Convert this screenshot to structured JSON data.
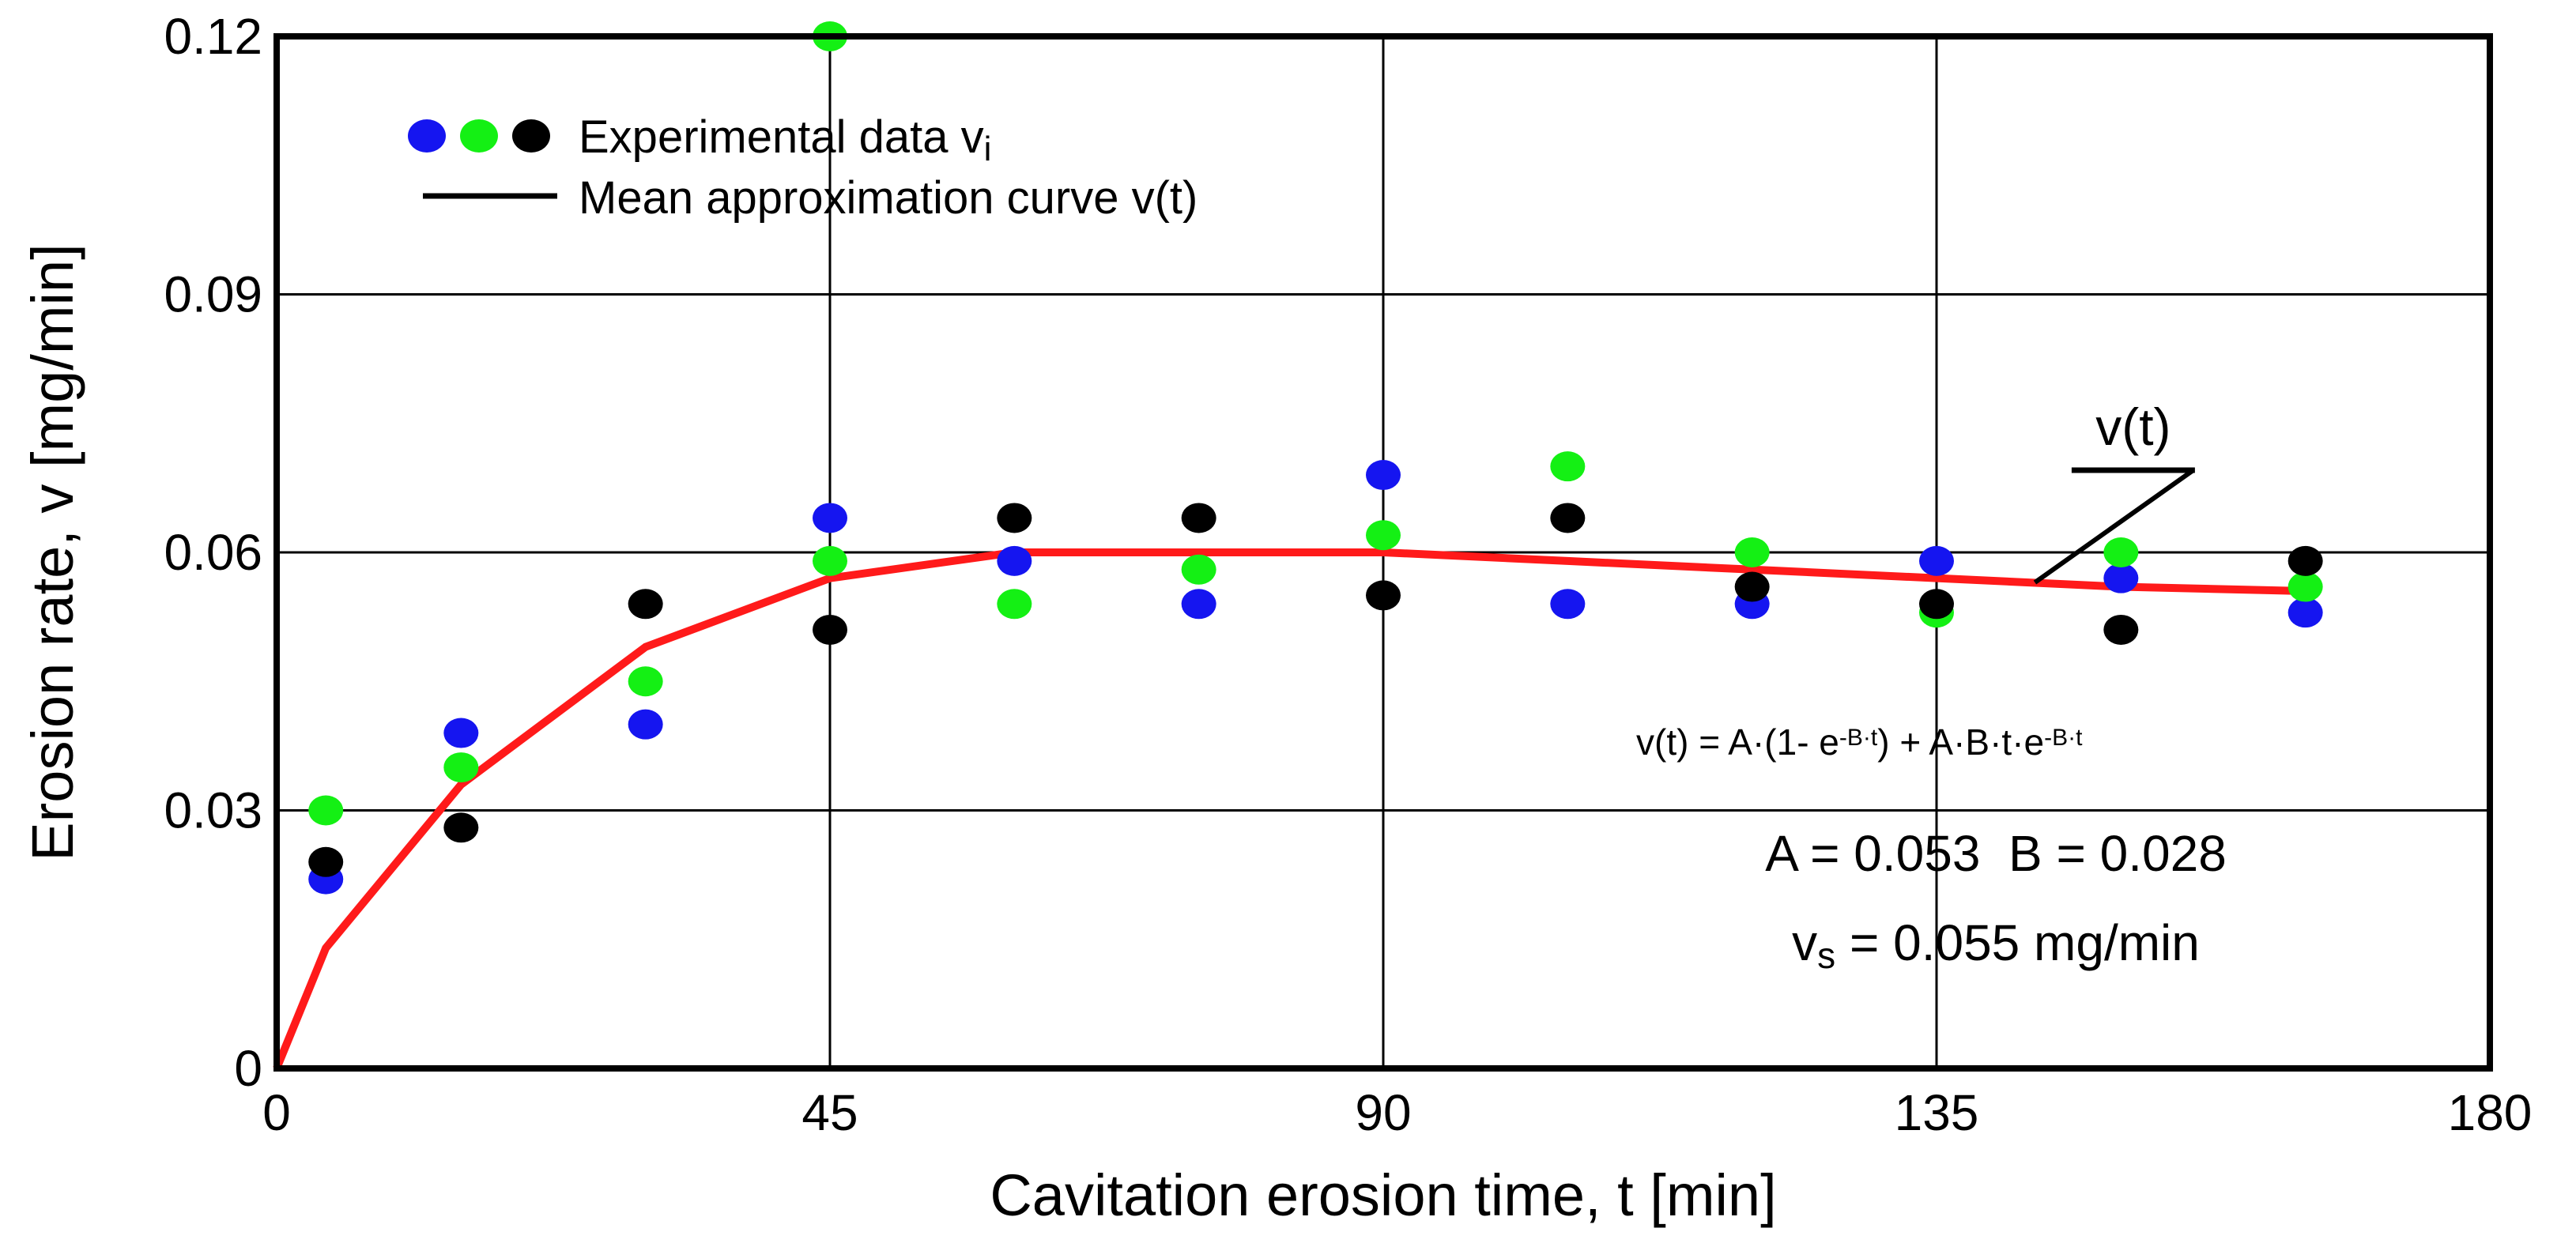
{
  "chart_data": {
    "type": "scatter",
    "xlabel": "Cavitation erosion time, t [min]",
    "ylabel": "Erosion rate, v [mg/min]",
    "xlim": [
      0,
      180
    ],
    "ylim": [
      0,
      0.12
    ],
    "x_ticks": [
      "0",
      "45",
      "90",
      "135",
      "180"
    ],
    "y_ticks": [
      "0",
      "0.03",
      "0.06",
      "0.09",
      "0.12"
    ],
    "grid": true,
    "legend": {
      "position": "top-left",
      "points_label": "Experimental data vi",
      "curve_label": "Mean approximation curve v(t)"
    },
    "colors": {
      "blue": "#1515f0",
      "green": "#14f014",
      "black": "#000000",
      "curve": "#ff1a1a"
    },
    "series": [
      {
        "color": "#1515f0",
        "points": [
          [
            4,
            0.022
          ],
          [
            15,
            0.039
          ],
          [
            30,
            0.04
          ],
          [
            45,
            0.064
          ],
          [
            60,
            0.059
          ],
          [
            75,
            0.054
          ],
          [
            90,
            0.069
          ],
          [
            105,
            0.054
          ],
          [
            120,
            0.054
          ],
          [
            135,
            0.059
          ],
          [
            150,
            0.057
          ],
          [
            165,
            0.053
          ]
        ]
      },
      {
        "color": "#14f014",
        "points": [
          [
            4,
            0.03
          ],
          [
            15,
            0.035
          ],
          [
            30,
            0.045
          ],
          [
            45,
            0.059
          ],
          [
            60,
            0.054
          ],
          [
            75,
            0.058
          ],
          [
            90,
            0.062
          ],
          [
            105,
            0.07
          ],
          [
            120,
            0.06
          ],
          [
            135,
            0.053
          ],
          [
            150,
            0.06
          ],
          [
            165,
            0.056
          ],
          [
            45,
            0.12
          ]
        ]
      },
      {
        "color": "#000000",
        "points": [
          [
            4,
            0.024
          ],
          [
            15,
            0.028
          ],
          [
            30,
            0.054
          ],
          [
            45,
            0.051
          ],
          [
            60,
            0.064
          ],
          [
            75,
            0.064
          ],
          [
            90,
            0.055
          ],
          [
            105,
            0.064
          ],
          [
            120,
            0.056
          ],
          [
            135,
            0.054
          ],
          [
            150,
            0.051
          ],
          [
            165,
            0.059
          ]
        ]
      }
    ],
    "curve": {
      "color": "#ff1a1a",
      "x": [
        0,
        4,
        15,
        30,
        45,
        60,
        75,
        90,
        105,
        120,
        135,
        150,
        165
      ],
      "y": [
        0.0,
        0.014,
        0.033,
        0.049,
        0.057,
        0.06,
        0.06,
        0.06,
        0.059,
        0.058,
        0.057,
        0.056,
        0.0555
      ]
    },
    "annotations": {
      "curve_label": "v(t)",
      "curve_label_at": [
        151,
        0.0725
      ],
      "equation": "v(t) = A·(1- e-B·t) + A·B·t·e-B·t",
      "params": "A = 0.053  B = 0.028",
      "steady": "vs = 0.055 mg/min"
    }
  }
}
